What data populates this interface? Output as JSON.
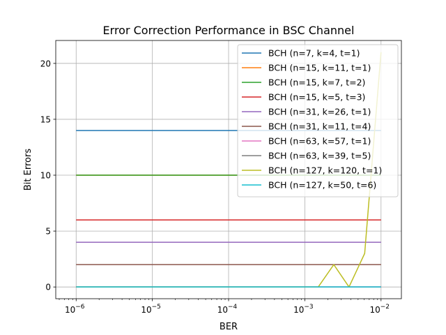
{
  "chart_data": {
    "type": "line",
    "title": "Error Correction Performance in BSC Channel",
    "xlabel": "BER",
    "ylabel": "Bit Errors",
    "xscale": "log",
    "xlim": [
      5.4e-07,
      0.0185
    ],
    "ylim": [
      -1.05,
      22.05
    ],
    "x_ticks": [
      {
        "value": 1e-06,
        "base": "10",
        "exp": "−6"
      },
      {
        "value": 1e-05,
        "base": "10",
        "exp": "−5"
      },
      {
        "value": 0.0001,
        "base": "10",
        "exp": "−4"
      },
      {
        "value": 0.001,
        "base": "10",
        "exp": "−3"
      },
      {
        "value": 0.01,
        "base": "10",
        "exp": "−2"
      }
    ],
    "y_ticks": [
      {
        "value": 0,
        "label": "0"
      },
      {
        "value": 5,
        "label": "5"
      },
      {
        "value": 10,
        "label": "10"
      },
      {
        "value": 15,
        "label": "15"
      },
      {
        "value": 20,
        "label": "20"
      }
    ],
    "grid": true,
    "legend_position": "top-right",
    "series": [
      {
        "name": "BCH (n=7, k=4, t=1)",
        "color": "#1f77b4",
        "x": [
          1e-06,
          0.01
        ],
        "values": [
          14,
          14
        ]
      },
      {
        "name": "BCH (n=15, k=11, t=1)",
        "color": "#ff7f0e",
        "x": [
          1e-06,
          0.01
        ],
        "values": [
          10,
          10
        ]
      },
      {
        "name": "BCH (n=15, k=7, t=2)",
        "color": "#2ca02c",
        "x": [
          1e-06,
          0.01
        ],
        "values": [
          10,
          10
        ]
      },
      {
        "name": "BCH (n=15, k=5, t=3)",
        "color": "#d62728",
        "x": [
          1e-06,
          0.01
        ],
        "values": [
          6,
          6
        ]
      },
      {
        "name": "BCH (n=31, k=26, t=1)",
        "color": "#9467bd",
        "x": [
          1e-06,
          0.01
        ],
        "values": [
          4,
          4
        ]
      },
      {
        "name": "BCH (n=31, k=11, t=4)",
        "color": "#8c564b",
        "x": [
          1e-06,
          0.01
        ],
        "values": [
          2,
          2
        ]
      },
      {
        "name": "BCH (n=63, k=57, t=1)",
        "color": "#e377c2",
        "x": [
          1e-06,
          0.01
        ],
        "values": [
          0,
          0
        ]
      },
      {
        "name": "BCH (n=63, k=39, t=5)",
        "color": "#7f7f7f",
        "x": [
          1e-06,
          0.01
        ],
        "values": [
          0,
          0
        ]
      },
      {
        "name": "BCH (n=127, k=120, t=1)",
        "color": "#bcbd22",
        "x": [
          1e-06,
          0.0015,
          0.0024,
          0.0038,
          0.0061,
          0.01
        ],
        "values": [
          0,
          0,
          2,
          0,
          3,
          21
        ]
      },
      {
        "name": "BCH (n=127, k=50, t=6)",
        "color": "#17becf",
        "x": [
          1e-06,
          0.01
        ],
        "values": [
          0,
          0
        ]
      }
    ]
  }
}
